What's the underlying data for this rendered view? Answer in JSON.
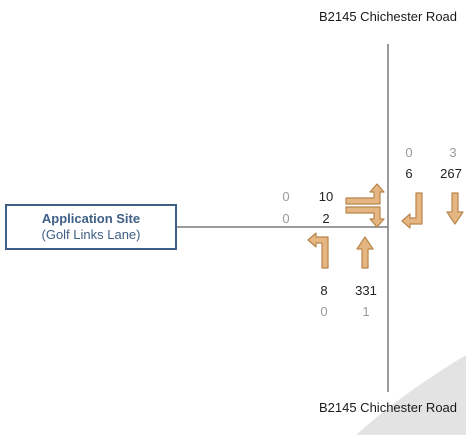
{
  "roads": {
    "north_label": "B2145 Chichester Road",
    "south_label": "B2145 Chichester Road",
    "site_title": "Application Site",
    "site_subtitle": "(Golf Links Lane)"
  },
  "flows": {
    "west_arm": {
      "left_turn_grey": "0",
      "left_turn": "10",
      "right_turn_grey": "0",
      "right_turn": "2"
    },
    "north_arm": {
      "right_turn_grey": "0",
      "right_turn": "6",
      "ahead_grey": "3",
      "ahead": "267"
    },
    "south_arm": {
      "left_turn": "8",
      "left_turn_grey": "0",
      "ahead": "331",
      "ahead_grey": "1"
    }
  },
  "colors": {
    "arrow_fill": "#e5b682",
    "arrow_stroke": "#b9854b",
    "road_line": "#7a7a7a",
    "site_border": "#3e5f86"
  }
}
